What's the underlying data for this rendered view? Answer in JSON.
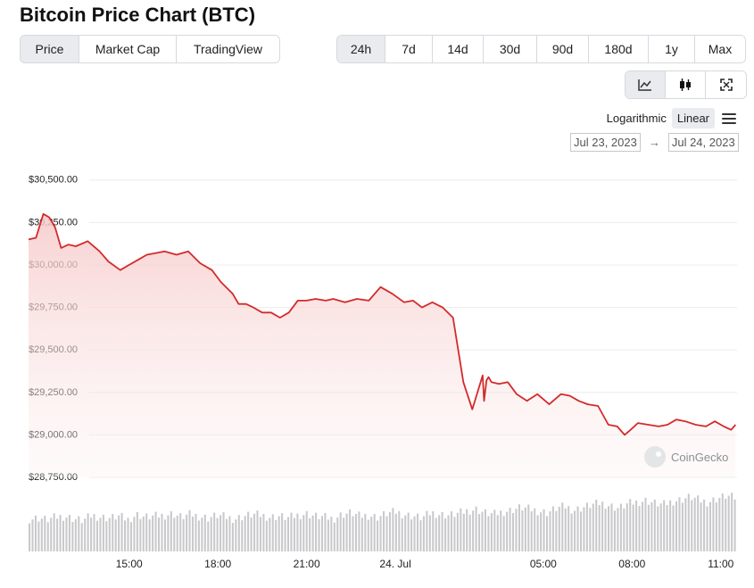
{
  "title": "Bitcoin Price Chart (BTC)",
  "tabs": [
    {
      "label": "Price",
      "active": true
    },
    {
      "label": "Market Cap",
      "active": false
    },
    {
      "label": "TradingView",
      "active": false
    }
  ],
  "ranges": [
    {
      "label": "24h",
      "active": true
    },
    {
      "label": "7d",
      "active": false
    },
    {
      "label": "14d",
      "active": false
    },
    {
      "label": "30d",
      "active": false
    },
    {
      "label": "90d",
      "active": false
    },
    {
      "label": "180d",
      "active": false
    },
    {
      "label": "1y",
      "active": false
    },
    {
      "label": "Max",
      "active": false
    }
  ],
  "chart_types": [
    {
      "icon": "line-chart-icon",
      "active": true
    },
    {
      "icon": "candlestick-icon",
      "active": false
    },
    {
      "icon": "fullscreen-icon",
      "active": false
    }
  ],
  "scale": {
    "log_label": "Logarithmic",
    "linear_label": "Linear",
    "selected": "Linear"
  },
  "date_range": {
    "from": "Jul 23, 2023",
    "to": "Jul 24, 2023"
  },
  "watermark": "CoinGecko",
  "colors": {
    "line": "#d42a2a",
    "fill_top": "#f6c9c9",
    "volume": "#c9c9cc",
    "active_bg": "#e9ebee"
  },
  "chart_data": {
    "type": "area",
    "title": "",
    "xlabel": "",
    "ylabel": "",
    "ylim": [
      28750,
      30500
    ],
    "grid": true,
    "y_ticks": [
      "$30,500.00",
      "$30,250.00",
      "$30,000.00",
      "$29,750.00",
      "$29,500.00",
      "$29,250.00",
      "$29,000.00",
      "$28,750.00"
    ],
    "y_tick_values": [
      30500,
      30250,
      30000,
      29750,
      29500,
      29250,
      29000,
      28750
    ],
    "x_ticks": [
      "15:00",
      "18:00",
      "21:00",
      "24. Jul",
      "05:00",
      "08:00",
      "11:00"
    ],
    "x_tick_hours": [
      15,
      18,
      21,
      24,
      29,
      32,
      35
    ],
    "x_range_hours": [
      11.6,
      35.55
    ],
    "series": [
      {
        "x": [
          11.6,
          11.85,
          12.1,
          12.3,
          12.5,
          12.7,
          12.95,
          13.2,
          13.6,
          14.0,
          14.3,
          14.7,
          15.0,
          15.3,
          15.6,
          15.9,
          16.2,
          16.6,
          17.0,
          17.4,
          17.8,
          18.1,
          18.5,
          18.7,
          18.95,
          19.2,
          19.5,
          19.8,
          20.1,
          20.4,
          20.7,
          21.0,
          21.3,
          21.65,
          21.9,
          22.3,
          22.7,
          23.1,
          23.5,
          23.9,
          24.3,
          24.6,
          24.9,
          25.25,
          25.6,
          25.95,
          26.3,
          26.6,
          26.95,
          27.0,
          27.08,
          27.15,
          27.25,
          27.5,
          27.8,
          28.1,
          28.45,
          28.8,
          29.2,
          29.6,
          29.9,
          30.2,
          30.5,
          30.85,
          31.2,
          31.5,
          31.75,
          31.95,
          32.2,
          32.55,
          32.9,
          33.2,
          33.5,
          33.8,
          34.15,
          34.5,
          34.8,
          35.1,
          35.35,
          35.5
        ],
        "values": [
          30150,
          30160,
          30300,
          30280,
          30220,
          30100,
          30120,
          30110,
          30140,
          30080,
          30020,
          29970,
          30000,
          30030,
          30060,
          30070,
          30080,
          30060,
          30080,
          30010,
          29970,
          29900,
          29830,
          29770,
          29770,
          29750,
          29720,
          29720,
          29690,
          29720,
          29790,
          29790,
          29800,
          29790,
          29800,
          29780,
          29800,
          29790,
          29870,
          29830,
          29780,
          29790,
          29750,
          29780,
          29750,
          29690,
          29310,
          29150,
          29350,
          29200,
          29320,
          29340,
          29310,
          29300,
          29310,
          29240,
          29200,
          29240,
          29180,
          29240,
          29230,
          29200,
          29180,
          29170,
          29060,
          29050,
          29000,
          29030,
          29070,
          29060,
          29050,
          29060,
          29090,
          29080,
          29060,
          29050,
          29080,
          29050,
          29030,
          29060
        ]
      }
    ],
    "volume_values": [
      37,
      38,
      36,
      39,
      40,
      37,
      35,
      41,
      39,
      38,
      40,
      36,
      42,
      39,
      40,
      41,
      43,
      39,
      42,
      40,
      38,
      41,
      39,
      37,
      40,
      42,
      41,
      39,
      40,
      38,
      41,
      43,
      40,
      39,
      37,
      42,
      44,
      40,
      41,
      39,
      43,
      45,
      42,
      40,
      38,
      44,
      42,
      41,
      43,
      46,
      48,
      44,
      42,
      45,
      47,
      50,
      48,
      46,
      44,
      49,
      51,
      47,
      50,
      53,
      55,
      52,
      49,
      54,
      56,
      58,
      55,
      53,
      57,
      59,
      62,
      58,
      56,
      60,
      63,
      61
    ]
  }
}
